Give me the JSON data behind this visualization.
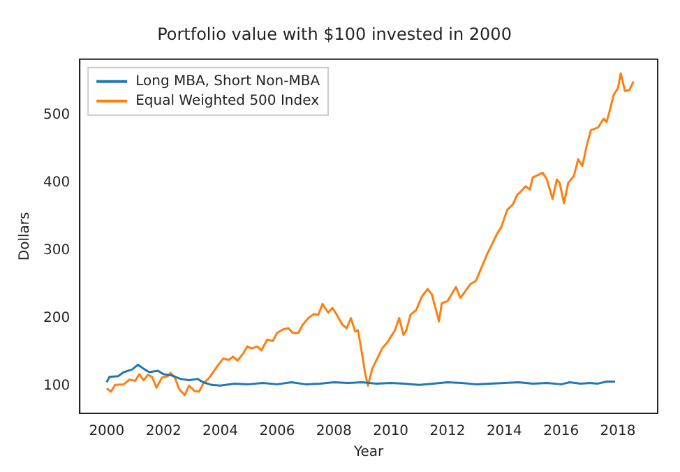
{
  "chart_data": {
    "type": "line",
    "title": "Portfolio value with $100 invested in 2000",
    "xlabel": "Year",
    "ylabel": "Dollars",
    "xlim": [
      1999.05,
      2019.4
    ],
    "xticks": [
      2000,
      2002,
      2004,
      2006,
      2008,
      2010,
      2012,
      2014,
      2016,
      2018
    ],
    "ylim": [
      59,
      583
    ],
    "yticks": [
      100,
      200,
      300,
      400,
      500
    ],
    "grid": false,
    "legend": "top left",
    "marker": "none",
    "line_style": "solid",
    "series": [
      {
        "name": "Long MBA, Short Non-MBA",
        "color": "#1f77b4",
        "x": [
          2000.0,
          2000.1,
          2000.4,
          2000.6,
          2000.9,
          2001.1,
          2001.3,
          2001.5,
          2001.8,
          2002.0,
          2002.3,
          2002.6,
          2002.9,
          2003.2,
          2003.4,
          2003.7,
          2004.0,
          2004.5,
          2005.0,
          2005.5,
          2006.0,
          2006.5,
          2007.0,
          2007.5,
          2008.0,
          2008.5,
          2009.0,
          2009.5,
          2010.0,
          2010.5,
          2011.0,
          2011.5,
          2012.0,
          2012.5,
          2013.0,
          2013.5,
          2014.0,
          2014.5,
          2015.0,
          2015.5,
          2016.0,
          2016.3,
          2016.7,
          2017.0,
          2017.3,
          2017.6,
          2017.9
        ],
        "values": [
          105,
          113,
          114,
          120,
          124,
          131,
          125,
          120,
          122,
          117,
          115,
          110,
          108,
          110,
          105,
          101,
          100,
          103,
          102,
          104,
          102,
          105,
          102,
          103,
          105,
          104,
          105,
          103,
          104,
          103,
          101,
          103,
          105,
          104,
          102,
          103,
          104,
          105,
          103,
          104,
          102,
          105,
          103,
          104,
          103,
          106,
          106
        ]
      },
      {
        "name": "Equal Weighted 500 Index",
        "color": "#ff7f0e",
        "x": [
          2000.0,
          2000.15,
          2000.3,
          2000.6,
          2000.8,
          2001.0,
          2001.15,
          2001.3,
          2001.45,
          2001.6,
          2001.75,
          2001.95,
          2002.15,
          2002.25,
          2002.4,
          2002.55,
          2002.75,
          2002.9,
          2003.1,
          2003.25,
          2003.4,
          2003.6,
          2003.75,
          2003.95,
          2004.1,
          2004.3,
          2004.45,
          2004.6,
          2004.8,
          2004.95,
          2005.1,
          2005.3,
          2005.45,
          2005.65,
          2005.85,
          2006.0,
          2006.2,
          2006.4,
          2006.55,
          2006.75,
          2006.9,
          2007.1,
          2007.3,
          2007.45,
          2007.6,
          2007.8,
          2007.95,
          2008.1,
          2008.3,
          2008.45,
          2008.6,
          2008.75,
          2008.85,
          2009.0,
          2009.1,
          2009.2,
          2009.35,
          2009.5,
          2009.7,
          2009.9,
          2010.0,
          2010.15,
          2010.3,
          2010.45,
          2010.55,
          2010.7,
          2010.9,
          2011.1,
          2011.3,
          2011.45,
          2011.7,
          2011.8,
          2012.0,
          2012.3,
          2012.45,
          2012.6,
          2012.8,
          2013.0,
          2013.2,
          2013.4,
          2013.6,
          2013.75,
          2013.9,
          2014.1,
          2014.3,
          2014.45,
          2014.6,
          2014.75,
          2014.9,
          2015.0,
          2015.2,
          2015.35,
          2015.5,
          2015.7,
          2015.85,
          2015.95,
          2016.1,
          2016.25,
          2016.45,
          2016.6,
          2016.75,
          2016.9,
          2017.05,
          2017.3,
          2017.5,
          2017.6,
          2017.7,
          2017.85,
          2018.0,
          2018.1,
          2018.25,
          2018.4,
          2018.55
        ],
        "values": [
          96,
          91,
          101,
          102,
          109,
          107,
          117,
          108,
          116,
          113,
          97,
          112,
          114,
          119,
          112,
          95,
          86,
          100,
          92,
          91,
          103,
          111,
          120,
          132,
          140,
          138,
          143,
          137,
          147,
          158,
          155,
          158,
          152,
          168,
          166,
          178,
          183,
          185,
          178,
          178,
          190,
          200,
          206,
          205,
          221,
          208,
          215,
          205,
          190,
          185,
          200,
          180,
          182,
          145,
          118,
          100,
          125,
          138,
          155,
          165,
          172,
          182,
          200,
          175,
          182,
          205,
          212,
          232,
          243,
          235,
          195,
          222,
          225,
          246,
          230,
          238,
          250,
          255,
          275,
          295,
          312,
          325,
          335,
          360,
          368,
          382,
          388,
          395,
          390,
          408,
          412,
          415,
          405,
          376,
          405,
          400,
          370,
          400,
          410,
          435,
          425,
          455,
          478,
          482,
          495,
          490,
          505,
          530,
          540,
          562,
          536,
          537,
          550
        ]
      }
    ]
  }
}
